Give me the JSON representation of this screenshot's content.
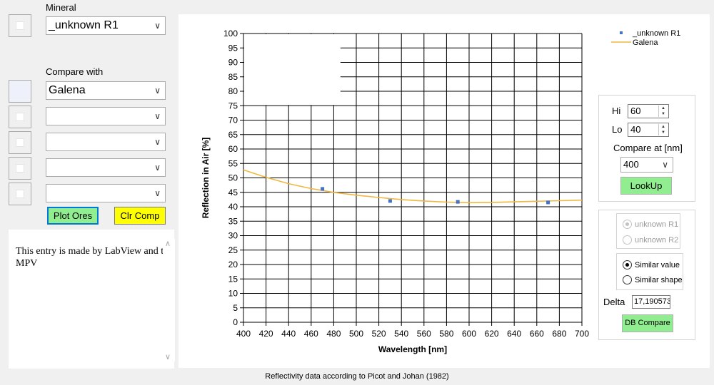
{
  "left": {
    "mineral_label": "Mineral",
    "mineral_value": "_unknown R1",
    "compare_label": "Compare with",
    "compare_values": [
      "Galena",
      "",
      "",
      "",
      ""
    ],
    "plot_ores_label": "Plot Ores",
    "clr_comp_label": "Clr Comp",
    "info_text": "This entry is made by LabView and the MPV"
  },
  "colors": {
    "plot_ores_bg": "#90ee90",
    "clr_comp_bg": "#ffff00",
    "lookup_bg": "#90ee90",
    "db_compare_bg": "#90ee90",
    "series_marker": "#4472c4",
    "galena_line": "#f0b840"
  },
  "chart_data": {
    "type": "scatter",
    "xlabel": "Wavelength [nm]",
    "ylabel": "Reflection in Air [%]",
    "xlim": [
      400,
      700
    ],
    "ylim": [
      0,
      100
    ],
    "x_ticks": [
      400,
      420,
      440,
      460,
      480,
      500,
      520,
      540,
      560,
      580,
      600,
      620,
      640,
      660,
      680,
      700
    ],
    "y_ticks": [
      0,
      5,
      10,
      15,
      20,
      25,
      30,
      35,
      40,
      45,
      50,
      55,
      60,
      65,
      70,
      75,
      80,
      85,
      90,
      95,
      100
    ],
    "grid": true,
    "legend_position": "top-right",
    "series": [
      {
        "name": "_unknown R1",
        "kind": "marker",
        "x": [
          470,
          530,
          590,
          670
        ],
        "y": [
          46.2,
          42.0,
          41.7,
          41.5
        ]
      },
      {
        "name": "Galena",
        "kind": "line",
        "x": [
          400,
          420,
          440,
          460,
          480,
          500,
          520,
          540,
          560,
          580,
          600,
          620,
          640,
          660,
          680,
          700
        ],
        "y": [
          52.8,
          50.2,
          48.0,
          46.3,
          45.0,
          44.0,
          43.2,
          42.5,
          42.0,
          41.6,
          41.4,
          41.5,
          41.7,
          41.9,
          42.1,
          42.3
        ]
      }
    ]
  },
  "right": {
    "hi_label": "Hi",
    "hi_value": "60",
    "lo_label": "Lo",
    "lo_value": "40",
    "compare_at_label": "Compare at [nm]",
    "compare_at_value": "400",
    "lookup_label": "LookUp",
    "radio_r1_label": "unknown R1",
    "radio_r2_label": "unknown R2",
    "similar_value_label": "Similar value",
    "similar_shape_label": "Similar shape",
    "delta_label": "Delta",
    "delta_value": "17,190573",
    "db_compare_label": "DB Compare"
  },
  "footer": {
    "source_text": "Reflectivity data according to Picot and Johan (1982)"
  }
}
